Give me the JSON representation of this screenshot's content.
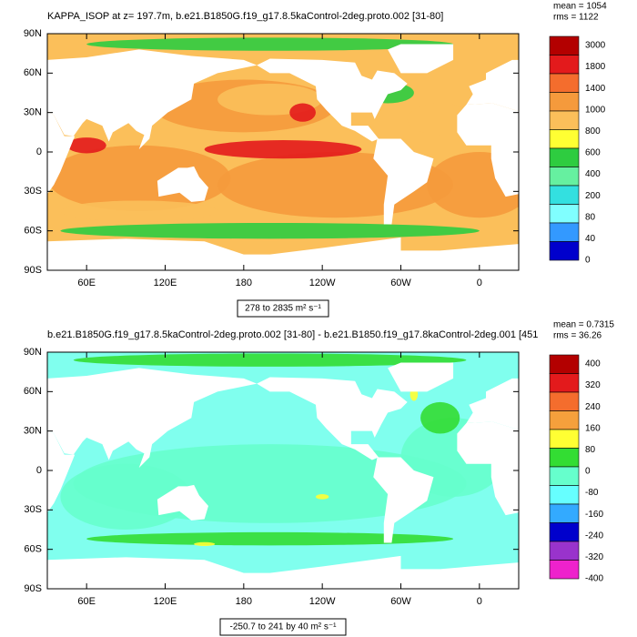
{
  "panels": [
    {
      "title": "KAPPA_ISOP at z= 197.7m, b.e21.B1850G.f19_g17.8.5kaControl-2deg.proto.002 [31-80]",
      "stats": [
        "mean = 1054",
        "rms = 1122"
      ],
      "range_label": "278 to 2835 m² s⁻¹",
      "colorbar": {
        "labels": [
          "3000",
          "1800",
          "1400",
          "1000",
          "800",
          "600",
          "400",
          "200",
          "80",
          "40",
          "0"
        ],
        "colors": [
          "#b30000",
          "#e31a1c",
          "#f46d2d",
          "#f59a3c",
          "#fbbf5a",
          "#ffff33",
          "#2ecc40",
          "#66f0a0",
          "#33e0e0",
          "#80ffff",
          "#3399ff",
          "#0000cc"
        ]
      }
    },
    {
      "title": "b.e21.B1850G.f19_g17.8.5kaControl-2deg.proto.002 [31-80] - b.e21.B1850.f19_g17.8kaControl-2deg.001 [451",
      "stats": [
        "mean = 0.7315",
        "rms = 36.26"
      ],
      "range_label": "-250.7 to 241 by 40 m² s⁻¹",
      "colorbar": {
        "labels": [
          "400",
          "320",
          "240",
          "160",
          "80",
          "0",
          "-80",
          "-160",
          "-240",
          "-320",
          "-400"
        ],
        "colors": [
          "#b30000",
          "#e31a1c",
          "#f46d2d",
          "#f5a03c",
          "#ffff33",
          "#33dd33",
          "#66ffcc",
          "#66ffff",
          "#33aaff",
          "#0000cc",
          "#9933cc",
          "#ee22cc"
        ]
      }
    }
  ],
  "lat_labels": [
    "90N",
    "60N",
    "30N",
    "0",
    "30S",
    "60S",
    "90S"
  ],
  "lon_labels": [
    "60E",
    "120E",
    "180",
    "120W",
    "60W",
    "0"
  ]
}
